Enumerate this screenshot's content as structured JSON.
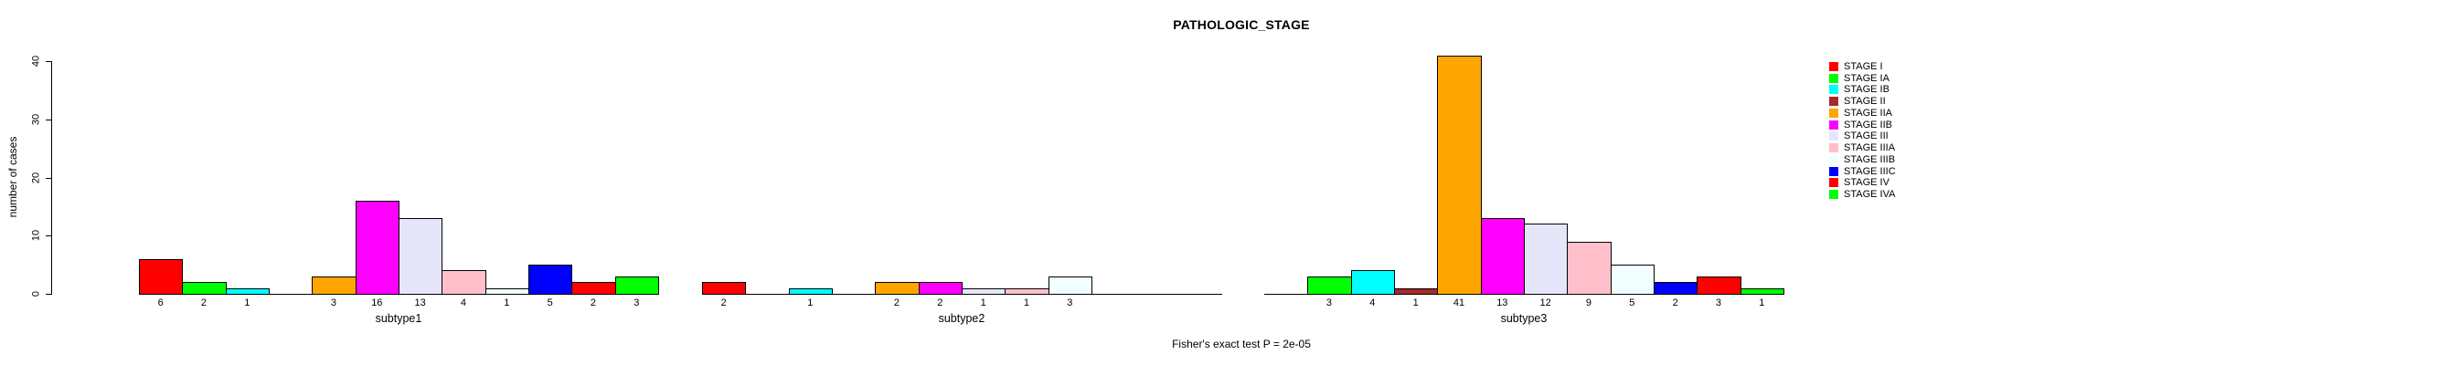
{
  "chart_data": {
    "type": "bar",
    "title": "PATHOLOGIC_STAGE",
    "ylabel": "number of cases",
    "footer": "Fisher's exact test P = 2e-05",
    "yticks": [
      0,
      10,
      20,
      30,
      40
    ],
    "ylim": [
      0,
      43
    ],
    "grid": false,
    "legend_position": "right",
    "categories": [
      "STAGE I",
      "STAGE IA",
      "STAGE IB",
      "STAGE II",
      "STAGE IIA",
      "STAGE IIB",
      "STAGE III",
      "STAGE IIIA",
      "STAGE IIIB",
      "STAGE IIIC",
      "STAGE IV",
      "STAGE IVA"
    ],
    "colors": [
      "#FF0000",
      "#00FF00",
      "#00FFFF",
      "#A52A2A",
      "#FFA500",
      "#FF00FF",
      "#E6E6FA",
      "#FFC0CB",
      "#F0FFFF",
      "#0000FF",
      "#FF0000",
      "#00FF00"
    ],
    "axis_color": "#000000",
    "series": [
      {
        "name": "subtype1",
        "values": [
          6,
          2,
          1,
          0,
          3,
          16,
          13,
          4,
          1,
          5,
          2,
          3
        ]
      },
      {
        "name": "subtype2",
        "values": [
          2,
          0,
          1,
          0,
          2,
          2,
          1,
          1,
          3,
          0,
          0,
          0
        ]
      },
      {
        "name": "subtype3",
        "values": [
          0,
          3,
          4,
          1,
          41,
          13,
          12,
          9,
          5,
          2,
          3,
          1
        ]
      }
    ]
  }
}
